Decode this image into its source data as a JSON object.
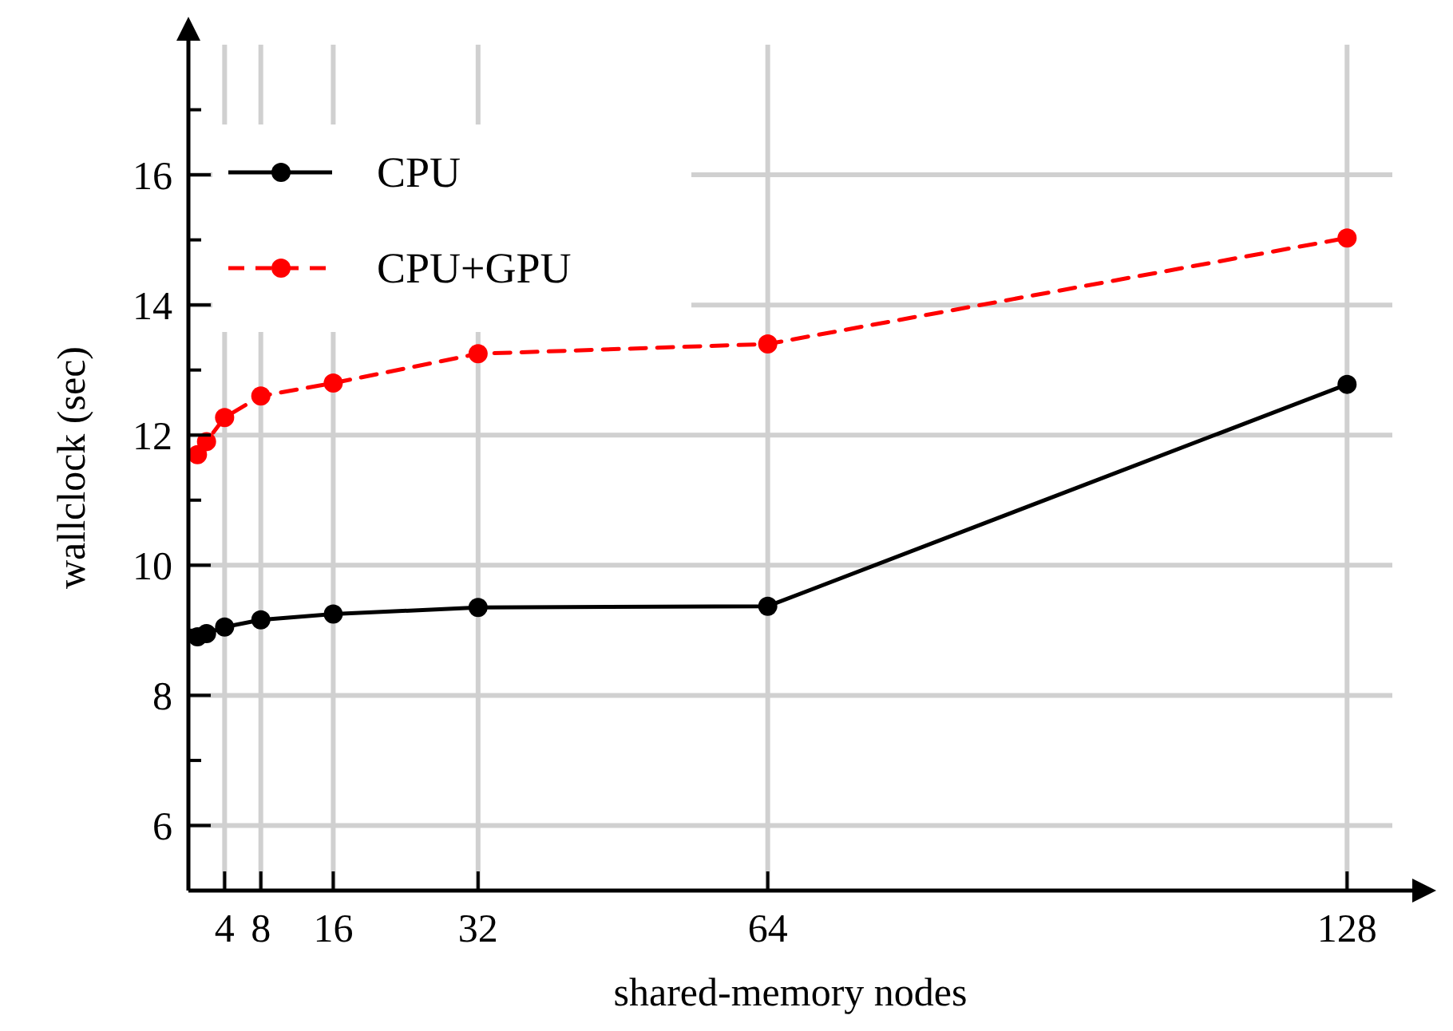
{
  "chart_data": {
    "type": "line",
    "xlabel": "shared-memory nodes",
    "ylabel": "wallclock (sec)",
    "x": [
      1,
      2,
      4,
      8,
      16,
      32,
      64,
      128
    ],
    "series": [
      {
        "name": "CPU",
        "color": "#000000",
        "values": [
          8.9,
          8.95,
          9.05,
          9.16,
          9.25,
          9.35,
          9.37,
          12.78
        ],
        "line_style": "solid"
      },
      {
        "name": "CPU+GPU",
        "color": "#ff0000",
        "values": [
          11.7,
          11.9,
          12.27,
          12.6,
          12.8,
          13.25,
          13.4,
          15.03
        ],
        "line_style": "dashed"
      }
    ],
    "xlim": [
      0,
      133
    ],
    "xticks": [
      4,
      8,
      16,
      32,
      64,
      128
    ],
    "ylim": [
      5,
      18
    ],
    "yticks": [
      {
        "value": 5,
        "label": null
      },
      6,
      {
        "value": 7,
        "label": null
      },
      8,
      {
        "value": 9,
        "label": null
      },
      10,
      {
        "value": 11,
        "label": null
      },
      12,
      {
        "value": 13,
        "label": null
      },
      14,
      {
        "value": 15,
        "label": null
      },
      16,
      {
        "value": 17,
        "label": null
      }
    ],
    "grid": true,
    "legend": "top left",
    "marker": "circle"
  }
}
